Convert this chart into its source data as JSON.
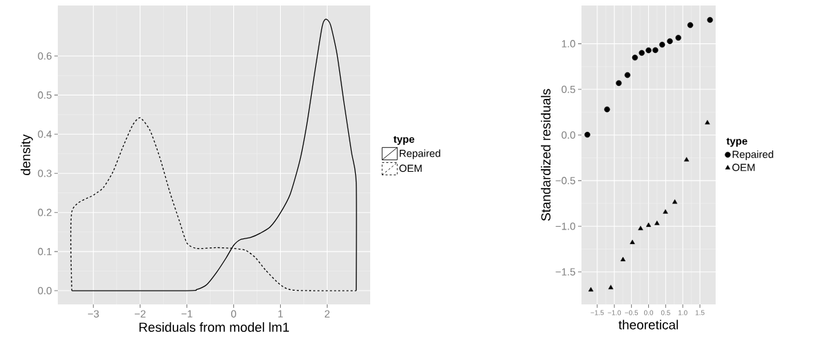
{
  "chart_data": [
    {
      "type": "line",
      "xlabel": "Residuals from model lm1",
      "ylabel": "density",
      "legend_title": "type",
      "legend": "right",
      "grid": true,
      "xlim": [
        -3.76,
        2.92
      ],
      "ylim": [
        -0.035,
        0.729
      ],
      "xticks": [
        {
          "value": -3,
          "label": "−3"
        },
        {
          "value": -2,
          "label": "−2"
        },
        {
          "value": -1,
          "label": "−1"
        },
        0,
        1,
        2
      ],
      "yticks": [
        {
          "value": 0,
          "label": "0.0"
        },
        0.1,
        0.2,
        0.3,
        0.4,
        0.5,
        0.6
      ],
      "series": [
        {
          "name": "Repaired",
          "color": "#000000",
          "line_style": "solid",
          "x": [
            -3.46,
            -1.0,
            -0.79,
            -0.58,
            -0.37,
            -0.16,
            0.0,
            0.15,
            0.36,
            0.57,
            0.78,
            0.99,
            1.21,
            1.42,
            1.57,
            1.73,
            1.89,
            1.97,
            2.07,
            2.21,
            2.36,
            2.52,
            2.62,
            2.62
          ],
          "values": [
            0,
            0,
            0.003,
            0.015,
            0.046,
            0.084,
            0.116,
            0.131,
            0.136,
            0.147,
            0.163,
            0.197,
            0.247,
            0.335,
            0.429,
            0.555,
            0.674,
            0.694,
            0.68,
            0.605,
            0.48,
            0.354,
            0.277,
            0
          ]
        },
        {
          "name": "OEM",
          "color": "#000000",
          "line_style": "dashed",
          "x": [
            -3.46,
            -3.46,
            -3.0,
            -2.79,
            -2.58,
            -2.37,
            -2.16,
            -2.0,
            -1.79,
            -1.58,
            -1.37,
            -1.16,
            -1.0,
            -0.79,
            -0.37,
            0.0,
            0.26,
            0.47,
            0.68,
            1.0,
            1.31,
            2.62
          ],
          "values": [
            0,
            0.202,
            0.244,
            0.263,
            0.304,
            0.367,
            0.423,
            0.442,
            0.41,
            0.341,
            0.254,
            0.178,
            0.122,
            0.108,
            0.11,
            0.108,
            0.103,
            0.084,
            0.053,
            0.015,
            0.001,
            0
          ]
        }
      ]
    },
    {
      "type": "scatter",
      "xlabel": "theoretical",
      "ylabel": "Standardized residuals",
      "legend_title": "type",
      "legend": "right",
      "grid": true,
      "xlim": [
        -1.96,
        1.96
      ],
      "ylim": [
        -1.856,
        1.419
      ],
      "xticks": [
        {
          "value": -1.5,
          "label": "−1.5"
        },
        {
          "value": -1,
          "label": "−1.0"
        },
        {
          "value": -0.5,
          "label": "−0.5"
        },
        {
          "value": 0,
          "label": "0.0"
        },
        0.5,
        {
          "value": 1,
          "label": "1.0"
        },
        1.5
      ],
      "yticks": [
        {
          "value": -1.5,
          "label": "−1.5"
        },
        {
          "value": -1,
          "label": "−1.0"
        },
        {
          "value": -0.5,
          "label": "−0.5"
        },
        {
          "value": 0,
          "label": "0.0"
        },
        0.5,
        {
          "value": 1,
          "label": "1.0"
        }
      ],
      "series": [
        {
          "name": "Repaired",
          "color": "#000000",
          "marker": "circle",
          "x": [
            -1.788,
            -1.212,
            -0.87,
            -0.616,
            -0.397,
            -0.199,
            0,
            0.199,
            0.397,
            0.623,
            0.87,
            1.219,
            1.795
          ],
          "values": [
            0.003,
            0.281,
            0.569,
            0.657,
            0.848,
            0.9,
            0.928,
            0.93,
            0.99,
            1.028,
            1.066,
            1.204,
            1.261
          ]
        },
        {
          "name": "OEM",
          "color": "#000000",
          "marker": "triangle",
          "x": [
            -1.685,
            -1.103,
            -0.747,
            -0.473,
            -0.233,
            0,
            0.247,
            0.493,
            0.767,
            1.11,
            1.719
          ],
          "values": [
            -1.698,
            -1.673,
            -1.367,
            -1.179,
            -1.026,
            -0.99,
            -0.97,
            -0.845,
            -0.737,
            -0.273,
            0.133
          ]
        }
      ]
    }
  ]
}
